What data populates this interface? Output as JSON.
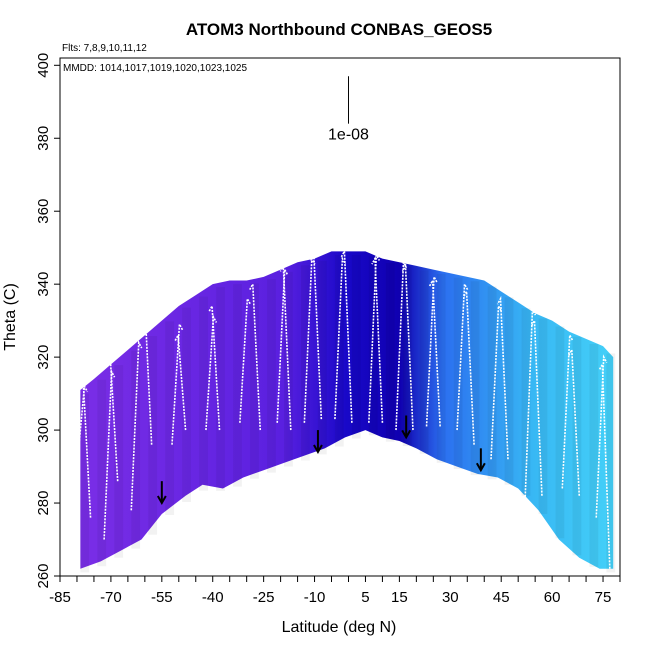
{
  "chart_data": {
    "type": "heatmap",
    "title": "ATOM3 Northbound CONBAS_GEOS5",
    "flights_label": "Flts: 7,8,9,10,11,12",
    "dates_label": "MMDD: 1014,1017,1019,1020,1023,1025",
    "xlabel": "Latitude (deg N)",
    "ylabel": "Theta (C)",
    "xlim": [
      -85,
      80
    ],
    "ylim": [
      260,
      402
    ],
    "x_ticks": [
      -85,
      -70,
      -55,
      -40,
      -25,
      -10,
      5,
      15,
      30,
      45,
      60,
      75
    ],
    "y_ticks": [
      260,
      280,
      300,
      320,
      340,
      360,
      380,
      400
    ],
    "scale_annotation": "1e-08",
    "colors": {
      "purple": "#7a2ee6",
      "violet": "#5a20e0",
      "deep_blue": "#1808c8",
      "dark_blue": "#1000b0",
      "mid_blue": "#2b6ff0",
      "light_blue": "#38b8f4",
      "cyan": "#44d0f8"
    },
    "field_bottom": {
      "lat": [
        -79,
        -73,
        -67,
        -61,
        -55,
        -48,
        -43,
        -37,
        -31,
        -25,
        -19,
        -13,
        -7,
        -1,
        5,
        10,
        15,
        20,
        26,
        32,
        38,
        44,
        50,
        56,
        62,
        68,
        74,
        78
      ],
      "theta": [
        262,
        264,
        267,
        270,
        277,
        282,
        285,
        284,
        287,
        289,
        291,
        293,
        295,
        298,
        300,
        298,
        297,
        295,
        292,
        290,
        288,
        287,
        284,
        278,
        270,
        265,
        262,
        262
      ]
    },
    "field_top": {
      "lat": [
        -79,
        -75,
        -70,
        -65,
        -60,
        -55,
        -50,
        -45,
        -40,
        -35,
        -30,
        -25,
        -20,
        -15,
        -10,
        -5,
        0,
        5,
        10,
        15,
        20,
        25,
        30,
        35,
        40,
        45,
        50,
        55,
        60,
        65,
        70,
        75,
        78
      ],
      "theta": [
        311,
        314,
        318,
        322,
        326,
        330,
        334,
        337,
        340,
        341,
        341,
        342,
        344,
        346,
        347,
        349,
        349,
        349,
        347,
        346,
        345,
        344,
        343,
        342,
        341,
        338,
        335,
        332,
        330,
        327,
        325,
        323,
        320
      ]
    },
    "profiles": [
      {
        "lat": -80,
        "bottom": 290,
        "top": 312
      },
      {
        "lat": -76,
        "bottom": 276,
        "top": 314
      },
      {
        "lat": -72,
        "bottom": 270,
        "top": 316
      },
      {
        "lat": -68,
        "bottom": 286,
        "top": 320
      },
      {
        "lat": -64,
        "bottom": 278,
        "top": 324
      },
      {
        "lat": -58,
        "bottom": 296,
        "top": 338
      },
      {
        "lat": -52,
        "bottom": 296,
        "top": 329
      },
      {
        "lat": -48,
        "bottom": 300,
        "top": 326
      },
      {
        "lat": -42,
        "bottom": 300,
        "top": 331
      },
      {
        "lat": -38,
        "bottom": 300,
        "top": 334
      },
      {
        "lat": -32,
        "bottom": 302,
        "top": 336
      },
      {
        "lat": -26,
        "bottom": 300,
        "top": 340
      },
      {
        "lat": -21,
        "bottom": 302,
        "top": 344
      },
      {
        "lat": -17,
        "bottom": 300,
        "top": 345
      },
      {
        "lat": -13,
        "bottom": 302,
        "top": 347
      },
      {
        "lat": -8,
        "bottom": 303,
        "top": 348
      },
      {
        "lat": -4,
        "bottom": 303,
        "top": 347
      },
      {
        "lat": 1,
        "bottom": 302,
        "top": 349
      },
      {
        "lat": 6,
        "bottom": 302,
        "top": 348
      },
      {
        "lat": 10,
        "bottom": 302,
        "top": 347
      },
      {
        "lat": 14,
        "bottom": 300,
        "top": 346
      },
      {
        "lat": 19,
        "bottom": 300,
        "top": 345
      },
      {
        "lat": 23,
        "bottom": 301,
        "top": 342
      },
      {
        "lat": 27,
        "bottom": 301,
        "top": 341
      },
      {
        "lat": 32,
        "bottom": 300,
        "top": 340
      },
      {
        "lat": 37,
        "bottom": 296,
        "top": 338
      },
      {
        "lat": 42,
        "bottom": 292,
        "top": 334
      },
      {
        "lat": 47,
        "bottom": 292,
        "top": 336
      },
      {
        "lat": 52,
        "bottom": 280,
        "top": 333
      },
      {
        "lat": 57,
        "bottom": 282,
        "top": 330
      },
      {
        "lat": 63,
        "bottom": 284,
        "top": 326
      },
      {
        "lat": 68,
        "bottom": 282,
        "top": 322
      },
      {
        "lat": 73,
        "bottom": 276,
        "top": 320
      },
      {
        "lat": 77,
        "bottom": 262,
        "top": 318
      }
    ],
    "arrows": [
      {
        "lat": -55,
        "theta_from": 286,
        "theta_to": 280
      },
      {
        "lat": -9,
        "theta_from": 300,
        "theta_to": 294
      },
      {
        "lat": 17,
        "theta_from": 304,
        "theta_to": 298
      },
      {
        "lat": 39,
        "theta_from": 295,
        "theta_to": 289
      }
    ],
    "scale_bar": {
      "lat": 0,
      "theta_from": 397,
      "theta_to": 384
    }
  }
}
